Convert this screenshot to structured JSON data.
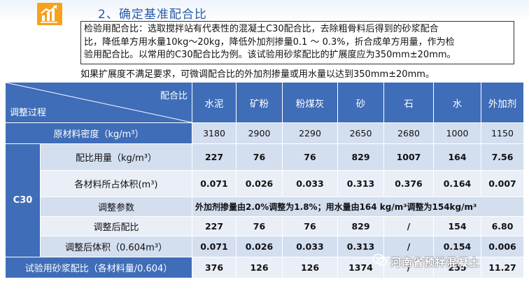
{
  "header": {
    "title": "2、确定基准配合比"
  },
  "description": {
    "boxed_lines": [
      "检验用配合比：选取搅拌站有代表性的混凝土C30配合比，去除粗骨料后得到的砂浆配合",
      "比，降低单方用水量10kg～20kg，降低外加剂掺量0.1 ～ 0.3%，折合成单方用量，作为检",
      "验用配合比。以常用的C30配合比为例。该试验用砂浆配比的扩展度应为350mm±20mm。"
    ],
    "tail_line": "如果扩展度不满足要求，可微调配合比的外加剂掺量或用水量以达到350mm±20mm。"
  },
  "table": {
    "corner_top": "配合比",
    "corner_bottom": "调整过程",
    "columns": [
      "水泥",
      "矿粉",
      "粉煤灰",
      "砂",
      "石",
      "水",
      "外加剂"
    ],
    "density_row": {
      "label": "原材料密度（kg/m³）",
      "values": [
        "3180",
        "2900",
        "2290",
        "2650",
        "2680",
        "1000",
        "1150"
      ]
    },
    "group_label": "C30",
    "rows": [
      {
        "label": "配比用量（kg/m³）",
        "values": [
          "227",
          "76",
          "76",
          "829",
          "1007",
          "164",
          "7.56"
        ]
      },
      {
        "label": "各材料所占体积(m³)",
        "values": [
          "0.071",
          "0.026",
          "0.033",
          "0.313",
          "0.376",
          "0.164",
          "0.007"
        ]
      },
      {
        "label": "调整参数",
        "note": "外加剂掺量由2.0%调整为1.8%；用水量由164 kg/m³调整为154kg/m³"
      },
      {
        "label": "调整后配比",
        "values": [
          "227",
          "76",
          "76",
          "829",
          "/",
          "154",
          "6.80"
        ]
      },
      {
        "label": "调整后体积（0.604m³）",
        "values": [
          "0.071",
          "0.026",
          "0.033",
          "0.313",
          "/",
          "0.154",
          "0.006"
        ]
      }
    ],
    "final_row": {
      "label": "试验用砂浆配比（各材料量/0.604）",
      "values": [
        "376",
        "126",
        "126",
        "1374",
        "/",
        "255",
        "11.27"
      ]
    }
  },
  "watermark": {
    "text": "河南省预拌混凝土"
  },
  "icons": {
    "logo": "bar-chart-icon",
    "watermark": "wechat-icon"
  },
  "colors": {
    "header_blue": "#3f6db8",
    "light_row": "#d3deef",
    "title_blue": "#2a5aa8",
    "logo_orange": "#f6a21c"
  }
}
